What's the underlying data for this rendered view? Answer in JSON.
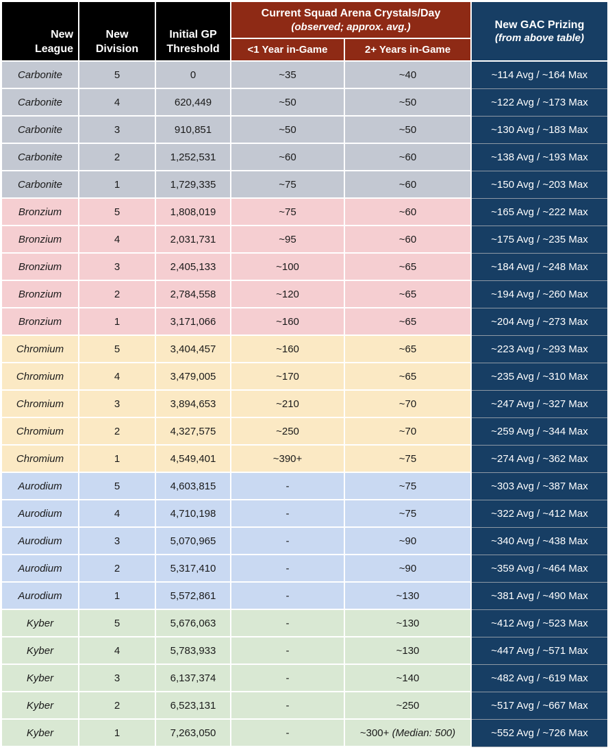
{
  "colors": {
    "header-black": "#000000",
    "header-red": "#8E2A15",
    "header-blue": "#173E64",
    "carbonite": "#C3C8D2",
    "bronzium": "#F5CED1",
    "chromium": "#FBE9C4",
    "aurodium": "#C9D9F2",
    "kyber": "#D9E8D3",
    "gridline": "#FFFFFF",
    "gac-divider": "#8E99A5",
    "body-text": "#1A1A1A"
  },
  "table": {
    "header": {
      "league_label": "New\nLeague",
      "division_label": "New\nDivision",
      "gp_label": "Initial GP\nThreshold",
      "crystals_title": "Current Squad Arena Crystals/Day",
      "crystals_subtitle": "(observed; approx. avg.)",
      "under1_label": "<1 Year in-Game",
      "over2_label": "2+ Years in-Game",
      "gac_title": "New GAC Prizing",
      "gac_subtitle": "(from above table)"
    },
    "rows": [
      {
        "league": "Carbonite",
        "league_key": "carbonite",
        "division": "5",
        "gp_threshold": "0",
        "crystals_under_1yr": "~35",
        "crystals_2plus_yr": "~40",
        "gac_prizing": "~114 Avg / ~164 Max"
      },
      {
        "league": "Carbonite",
        "league_key": "carbonite",
        "division": "4",
        "gp_threshold": "620,449",
        "crystals_under_1yr": "~50",
        "crystals_2plus_yr": "~50",
        "gac_prizing": "~122 Avg / ~173 Max"
      },
      {
        "league": "Carbonite",
        "league_key": "carbonite",
        "division": "3",
        "gp_threshold": "910,851",
        "crystals_under_1yr": "~50",
        "crystals_2plus_yr": "~50",
        "gac_prizing": "~130 Avg / ~183 Max"
      },
      {
        "league": "Carbonite",
        "league_key": "carbonite",
        "division": "2",
        "gp_threshold": "1,252,531",
        "crystals_under_1yr": "~60",
        "crystals_2plus_yr": "~60",
        "gac_prizing": "~138 Avg / ~193 Max"
      },
      {
        "league": "Carbonite",
        "league_key": "carbonite",
        "division": "1",
        "gp_threshold": "1,729,335",
        "crystals_under_1yr": "~75",
        "crystals_2plus_yr": "~60",
        "gac_prizing": "~150 Avg / ~203 Max"
      },
      {
        "league": "Bronzium",
        "league_key": "bronzium",
        "division": "5",
        "gp_threshold": "1,808,019",
        "crystals_under_1yr": "~75",
        "crystals_2plus_yr": "~60",
        "gac_prizing": "~165 Avg / ~222 Max"
      },
      {
        "league": "Bronzium",
        "league_key": "bronzium",
        "division": "4",
        "gp_threshold": "2,031,731",
        "crystals_under_1yr": "~95",
        "crystals_2plus_yr": "~60",
        "gac_prizing": "~175 Avg / ~235 Max"
      },
      {
        "league": "Bronzium",
        "league_key": "bronzium",
        "division": "3",
        "gp_threshold": "2,405,133",
        "crystals_under_1yr": "~100",
        "crystals_2plus_yr": "~65",
        "gac_prizing": "~184 Avg / ~248 Max"
      },
      {
        "league": "Bronzium",
        "league_key": "bronzium",
        "division": "2",
        "gp_threshold": "2,784,558",
        "crystals_under_1yr": "~120",
        "crystals_2plus_yr": "~65",
        "gac_prizing": "~194 Avg / ~260 Max"
      },
      {
        "league": "Bronzium",
        "league_key": "bronzium",
        "division": "1",
        "gp_threshold": "3,171,066",
        "crystals_under_1yr": "~160",
        "crystals_2plus_yr": "~65",
        "gac_prizing": "~204 Avg / ~273 Max"
      },
      {
        "league": "Chromium",
        "league_key": "chromium",
        "division": "5",
        "gp_threshold": "3,404,457",
        "crystals_under_1yr": "~160",
        "crystals_2plus_yr": "~65",
        "gac_prizing": "~223 Avg / ~293 Max"
      },
      {
        "league": "Chromium",
        "league_key": "chromium",
        "division": "4",
        "gp_threshold": "3,479,005",
        "crystals_under_1yr": "~170",
        "crystals_2plus_yr": "~65",
        "gac_prizing": "~235 Avg / ~310 Max"
      },
      {
        "league": "Chromium",
        "league_key": "chromium",
        "division": "3",
        "gp_threshold": "3,894,653",
        "crystals_under_1yr": "~210",
        "crystals_2plus_yr": "~70",
        "gac_prizing": "~247 Avg / ~327 Max"
      },
      {
        "league": "Chromium",
        "league_key": "chromium",
        "division": "2",
        "gp_threshold": "4,327,575",
        "crystals_under_1yr": "~250",
        "crystals_2plus_yr": "~70",
        "gac_prizing": "~259 Avg / ~344 Max"
      },
      {
        "league": "Chromium",
        "league_key": "chromium",
        "division": "1",
        "gp_threshold": "4,549,401",
        "crystals_under_1yr": "~390+",
        "crystals_2plus_yr": "~75",
        "gac_prizing": "~274 Avg / ~362 Max"
      },
      {
        "league": "Aurodium",
        "league_key": "aurodium",
        "division": "5",
        "gp_threshold": "4,603,815",
        "crystals_under_1yr": "-",
        "crystals_2plus_yr": "~75",
        "gac_prizing": "~303 Avg / ~387 Max"
      },
      {
        "league": "Aurodium",
        "league_key": "aurodium",
        "division": "4",
        "gp_threshold": "4,710,198",
        "crystals_under_1yr": "-",
        "crystals_2plus_yr": "~75",
        "gac_prizing": "~322 Avg / ~412 Max"
      },
      {
        "league": "Aurodium",
        "league_key": "aurodium",
        "division": "3",
        "gp_threshold": "5,070,965",
        "crystals_under_1yr": "-",
        "crystals_2plus_yr": "~90",
        "gac_prizing": "~340 Avg / ~438 Max"
      },
      {
        "league": "Aurodium",
        "league_key": "aurodium",
        "division": "2",
        "gp_threshold": "5,317,410",
        "crystals_under_1yr": "-",
        "crystals_2plus_yr": "~90",
        "gac_prizing": "~359 Avg / ~464 Max"
      },
      {
        "league": "Aurodium",
        "league_key": "aurodium",
        "division": "1",
        "gp_threshold": "5,572,861",
        "crystals_under_1yr": "-",
        "crystals_2plus_yr": "~130",
        "gac_prizing": "~381 Avg / ~490 Max"
      },
      {
        "league": "Kyber",
        "league_key": "kyber",
        "division": "5",
        "gp_threshold": "5,676,063",
        "crystals_under_1yr": "-",
        "crystals_2plus_yr": "~130",
        "gac_prizing": "~412 Avg / ~523 Max"
      },
      {
        "league": "Kyber",
        "league_key": "kyber",
        "division": "4",
        "gp_threshold": "5,783,933",
        "crystals_under_1yr": "-",
        "crystals_2plus_yr": "~130",
        "gac_prizing": "~447 Avg / ~571 Max"
      },
      {
        "league": "Kyber",
        "league_key": "kyber",
        "division": "3",
        "gp_threshold": "6,137,374",
        "crystals_under_1yr": "-",
        "crystals_2plus_yr": "~140",
        "gac_prizing": "~482 Avg / ~619 Max"
      },
      {
        "league": "Kyber",
        "league_key": "kyber",
        "division": "2",
        "gp_threshold": "6,523,131",
        "crystals_under_1yr": "-",
        "crystals_2plus_yr": "~250",
        "gac_prizing": "~517 Avg / ~667 Max"
      },
      {
        "league": "Kyber",
        "league_key": "kyber",
        "division": "1",
        "gp_threshold": "7,263,050",
        "crystals_under_1yr": "-",
        "crystals_2plus_yr": "~300+",
        "crystals_2plus_note": "(Median: 500)",
        "gac_prizing": "~552 Avg / ~726 Max"
      }
    ]
  },
  "chart_data": {
    "type": "table",
    "columns": [
      "New League",
      "New Division",
      "Initial GP Threshold",
      "Current Squad Arena Crystals/Day (observed; approx. avg.) - <1 Year in-Game",
      "Current Squad Arena Crystals/Day (observed; approx. avg.) - 2+ Years in-Game",
      "New GAC Prizing (from above table)"
    ],
    "rows": [
      [
        "Carbonite",
        5,
        "0",
        "~35",
        "~40",
        "~114 Avg / ~164 Max"
      ],
      [
        "Carbonite",
        4,
        "620,449",
        "~50",
        "~50",
        "~122 Avg / ~173 Max"
      ],
      [
        "Carbonite",
        3,
        "910,851",
        "~50",
        "~50",
        "~130 Avg / ~183 Max"
      ],
      [
        "Carbonite",
        2,
        "1,252,531",
        "~60",
        "~60",
        "~138 Avg / ~193 Max"
      ],
      [
        "Carbonite",
        1,
        "1,729,335",
        "~75",
        "~60",
        "~150 Avg / ~203 Max"
      ],
      [
        "Bronzium",
        5,
        "1,808,019",
        "~75",
        "~60",
        "~165 Avg / ~222 Max"
      ],
      [
        "Bronzium",
        4,
        "2,031,731",
        "~95",
        "~60",
        "~175 Avg / ~235 Max"
      ],
      [
        "Bronzium",
        3,
        "2,405,133",
        "~100",
        "~65",
        "~184 Avg / ~248 Max"
      ],
      [
        "Bronzium",
        2,
        "2,784,558",
        "~120",
        "~65",
        "~194 Avg / ~260 Max"
      ],
      [
        "Bronzium",
        1,
        "3,171,066",
        "~160",
        "~65",
        "~204 Avg / ~273 Max"
      ],
      [
        "Chromium",
        5,
        "3,404,457",
        "~160",
        "~65",
        "~223 Avg / ~293 Max"
      ],
      [
        "Chromium",
        4,
        "3,479,005",
        "~170",
        "~65",
        "~235 Avg / ~310 Max"
      ],
      [
        "Chromium",
        3,
        "3,894,653",
        "~210",
        "~70",
        "~247 Avg / ~327 Max"
      ],
      [
        "Chromium",
        2,
        "4,327,575",
        "~250",
        "~70",
        "~259 Avg / ~344 Max"
      ],
      [
        "Chromium",
        1,
        "4,549,401",
        "~390+",
        "~75",
        "~274 Avg / ~362 Max"
      ],
      [
        "Aurodium",
        5,
        "4,603,815",
        "-",
        "~75",
        "~303 Avg / ~387 Max"
      ],
      [
        "Aurodium",
        4,
        "4,710,198",
        "-",
        "~75",
        "~322 Avg / ~412 Max"
      ],
      [
        "Aurodium",
        3,
        "5,070,965",
        "-",
        "~90",
        "~340 Avg / ~438 Max"
      ],
      [
        "Aurodium",
        2,
        "5,317,410",
        "-",
        "~90",
        "~359 Avg / ~464 Max"
      ],
      [
        "Aurodium",
        1,
        "5,572,861",
        "-",
        "~130",
        "~381 Avg / ~490 Max"
      ],
      [
        "Kyber",
        5,
        "5,676,063",
        "-",
        "~130",
        "~412 Avg / ~523 Max"
      ],
      [
        "Kyber",
        4,
        "5,783,933",
        "-",
        "~130",
        "~447 Avg / ~571 Max"
      ],
      [
        "Kyber",
        3,
        "6,137,374",
        "-",
        "~140",
        "~482 Avg / ~619 Max"
      ],
      [
        "Kyber",
        2,
        "6,523,131",
        "-",
        "~250",
        "~517 Avg / ~667 Max"
      ],
      [
        "Kyber",
        1,
        "7,263,050",
        "-",
        "~300+ (Median: 500)",
        "~552 Avg / ~726 Max"
      ]
    ]
  }
}
